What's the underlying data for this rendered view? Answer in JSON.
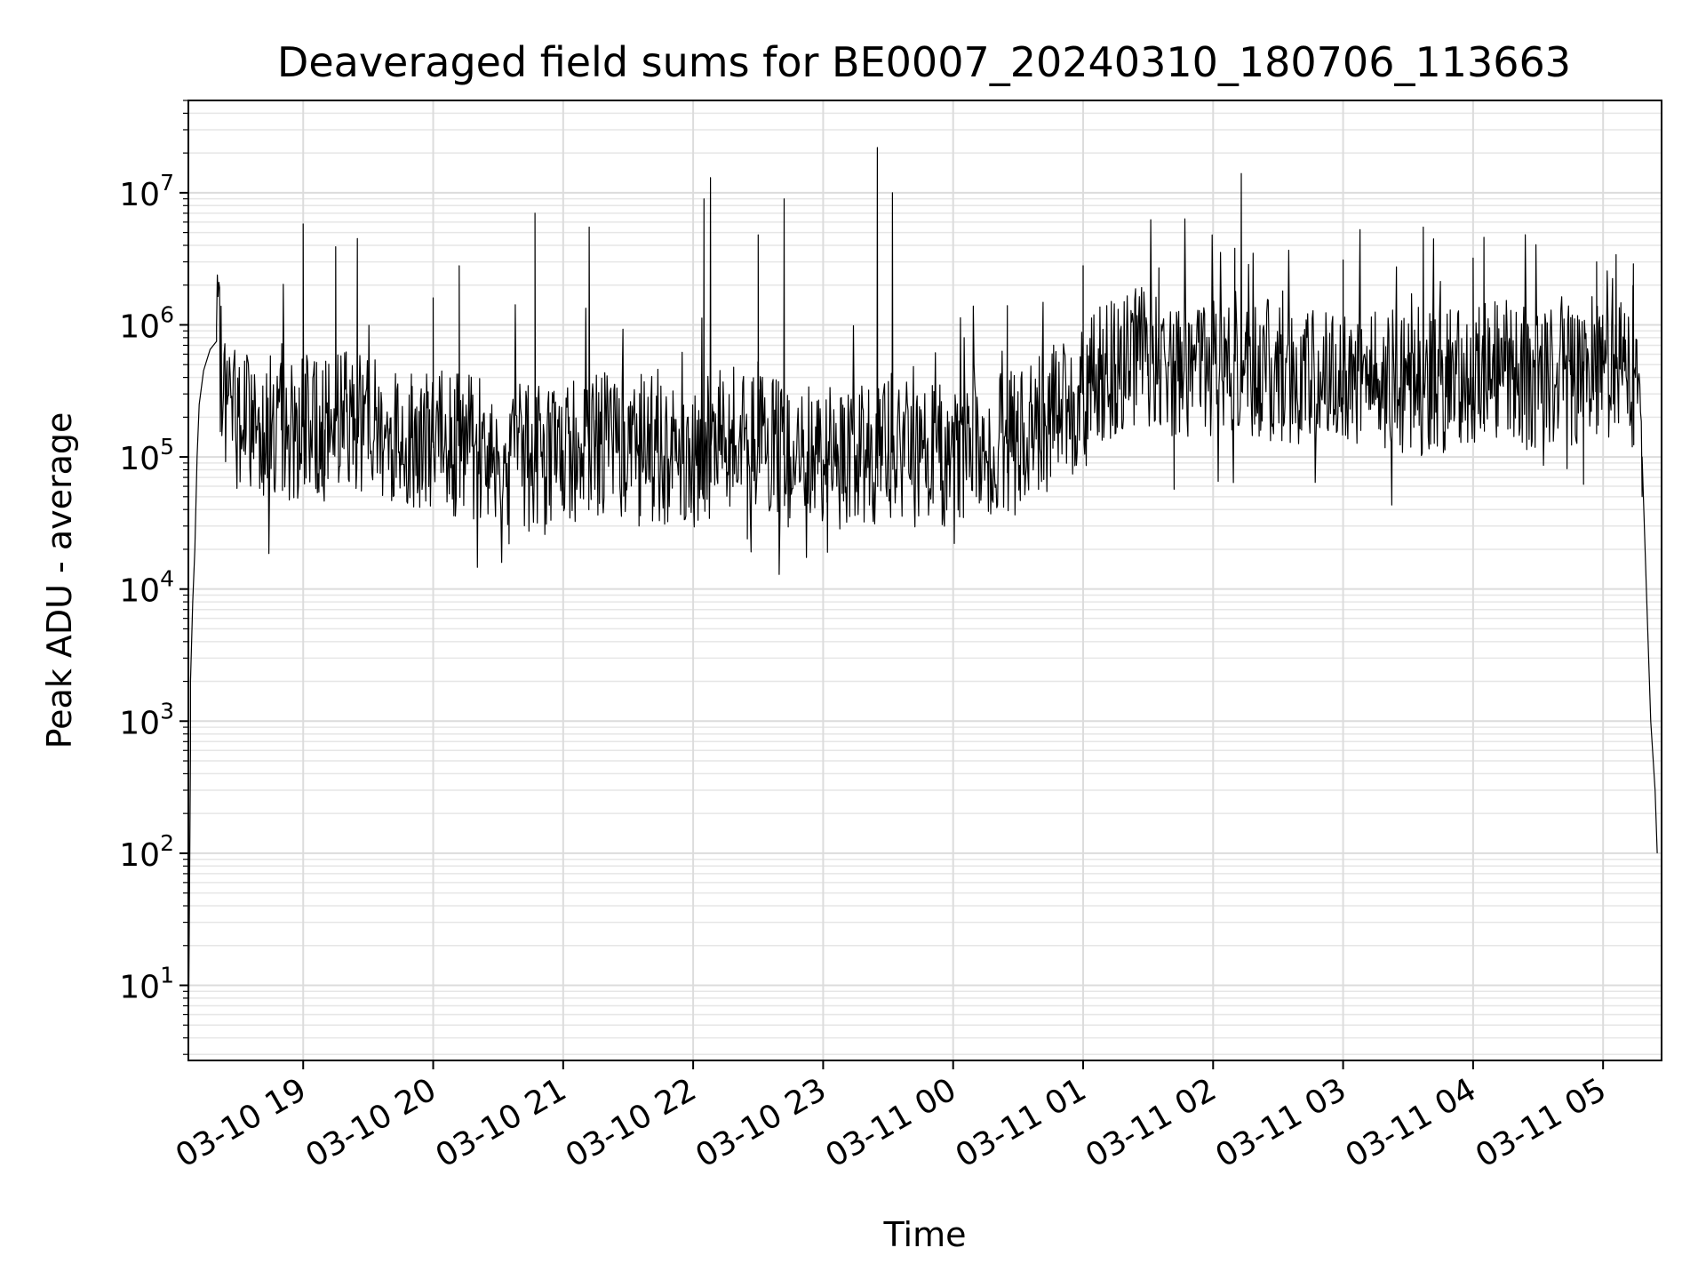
{
  "chart_data": {
    "type": "line",
    "title": "Deaveraged field sums for BE0007_20240310_180706_113663",
    "xlabel": "Time",
    "ylabel": "Peak ADU - average",
    "yscale": "log",
    "ylim": [
      2.7,
      50000000
    ],
    "xlim": [
      "03-10 18:07",
      "03-11 05:27"
    ],
    "grid": true,
    "series_color": "#000000",
    "x_ticks": [
      "03-10 19",
      "03-10 20",
      "03-10 21",
      "03-10 22",
      "03-10 23",
      "03-11 00",
      "03-11 01",
      "03-11 02",
      "03-11 03",
      "03-11 04",
      "03-11 05"
    ],
    "y_ticks": [
      {
        "base": "10",
        "exp": "1",
        "value": 10
      },
      {
        "base": "10",
        "exp": "2",
        "value": 100
      },
      {
        "base": "10",
        "exp": "3",
        "value": 1000
      },
      {
        "base": "10",
        "exp": "4",
        "value": 10000
      },
      {
        "base": "10",
        "exp": "5",
        "value": 100000
      },
      {
        "base": "10",
        "exp": "6",
        "value": 1000000
      },
      {
        "base": "10",
        "exp": "7",
        "value": 10000000
      }
    ],
    "series": [
      {
        "x": [
          "03-10 18:07",
          "03-10 18:08",
          "03-10 18:08",
          "03-10 18:09",
          "03-10 18:10",
          "03-10 18:11",
          "03-10 18:12",
          "03-10 18:14",
          "03-10 18:17",
          "03-10 18:20",
          "03-10 18:25",
          "03-10 18:30",
          "03-10 18:40",
          "03-10 18:50",
          "03-10 19:00",
          "03-10 19:10",
          "03-10 19:20",
          "03-10 19:30",
          "03-10 19:40",
          "03-10 19:50",
          "03-10 20:00",
          "03-10 20:15",
          "03-10 20:30",
          "03-10 20:45",
          "03-10 21:00",
          "03-10 21:15",
          "03-10 21:30",
          "03-10 21:45",
          "03-10 22:00",
          "03-10 22:15",
          "03-10 22:30",
          "03-10 22:45",
          "03-10 23:00",
          "03-10 23:15",
          "03-10 23:30",
          "03-10 23:45",
          "03-11 00:00",
          "03-11 00:15",
          "03-11 00:30",
          "03-11 00:45",
          "03-11 01:00",
          "03-11 01:15",
          "03-11 01:30",
          "03-11 01:45",
          "03-11 02:00",
          "03-11 02:15",
          "03-11 02:30",
          "03-11 02:45",
          "03-11 03:00",
          "03-11 03:15",
          "03-11 03:30",
          "03-11 03:45",
          "03-11 04:00",
          "03-11 04:15",
          "03-11 04:30",
          "03-11 04:45",
          "03-11 05:00",
          "03-11 05:10",
          "03-11 05:15",
          "03-11 05:18",
          "03-11 05:20",
          "03-11 05:22",
          "03-11 05:24",
          "03-11 05:25"
        ],
        "y": [
          3,
          600,
          2000,
          8000,
          20000,
          100000,
          250000,
          450000,
          650000,
          750000,
          250000,
          200000,
          180000,
          160000,
          170000,
          160000,
          220000,
          180000,
          150000,
          140000,
          130000,
          120000,
          110000,
          105000,
          110000,
          120000,
          130000,
          110000,
          100000,
          140000,
          120000,
          100000,
          95000,
          100000,
          110000,
          100000,
          100000,
          110000,
          150000,
          200000,
          300000,
          500000,
          600000,
          450000,
          500000,
          550000,
          400000,
          380000,
          450000,
          400000,
          350000,
          380000,
          400000,
          450000,
          400000,
          420000,
          500000,
          450000,
          400000,
          100000,
          10000,
          1000,
          300,
          100
        ]
      }
    ],
    "spikes": [
      {
        "x": "03-10 19:00",
        "y": 5800000
      },
      {
        "x": "03-10 19:15",
        "y": 3900000
      },
      {
        "x": "03-10 19:25",
        "y": 4500000
      },
      {
        "x": "03-10 20:00",
        "y": 1600000
      },
      {
        "x": "03-10 20:12",
        "y": 2800000
      },
      {
        "x": "03-10 20:47",
        "y": 7000000
      },
      {
        "x": "03-10 21:12",
        "y": 5500000
      },
      {
        "x": "03-10 22:05",
        "y": 9000000
      },
      {
        "x": "03-10 22:08",
        "y": 13000000
      },
      {
        "x": "03-10 22:30",
        "y": 4800000
      },
      {
        "x": "03-10 22:42",
        "y": 9000000
      },
      {
        "x": "03-10 23:25",
        "y": 22000000
      },
      {
        "x": "03-10 23:32",
        "y": 10000000
      },
      {
        "x": "03-11 00:25",
        "y": 1400000
      },
      {
        "x": "03-11 01:00",
        "y": 2800000
      },
      {
        "x": "03-11 01:35",
        "y": 2700000
      },
      {
        "x": "03-11 02:13",
        "y": 14000000
      },
      {
        "x": "03-11 02:10",
        "y": 3800000
      },
      {
        "x": "03-11 03:00",
        "y": 3100000
      },
      {
        "x": "03-11 03:37",
        "y": 5500000
      },
      {
        "x": "03-11 04:00",
        "y": 3200000
      },
      {
        "x": "03-11 04:05",
        "y": 4600000
      },
      {
        "x": "03-11 04:57",
        "y": 3000000
      },
      {
        "x": "03-11 05:06",
        "y": 3400000
      },
      {
        "x": "03-11 05:14",
        "y": 2900000
      }
    ],
    "dips": [
      {
        "x": "03-10 20:35",
        "y": 22000
      },
      {
        "x": "03-10 21:35",
        "y": 30000
      },
      {
        "x": "03-10 22:25",
        "y": 24000
      },
      {
        "x": "03-10 23:02",
        "y": 19000
      },
      {
        "x": "03-11 01:42",
        "y": 57000
      },
      {
        "x": "03-11 04:51",
        "y": 62000
      }
    ]
  }
}
